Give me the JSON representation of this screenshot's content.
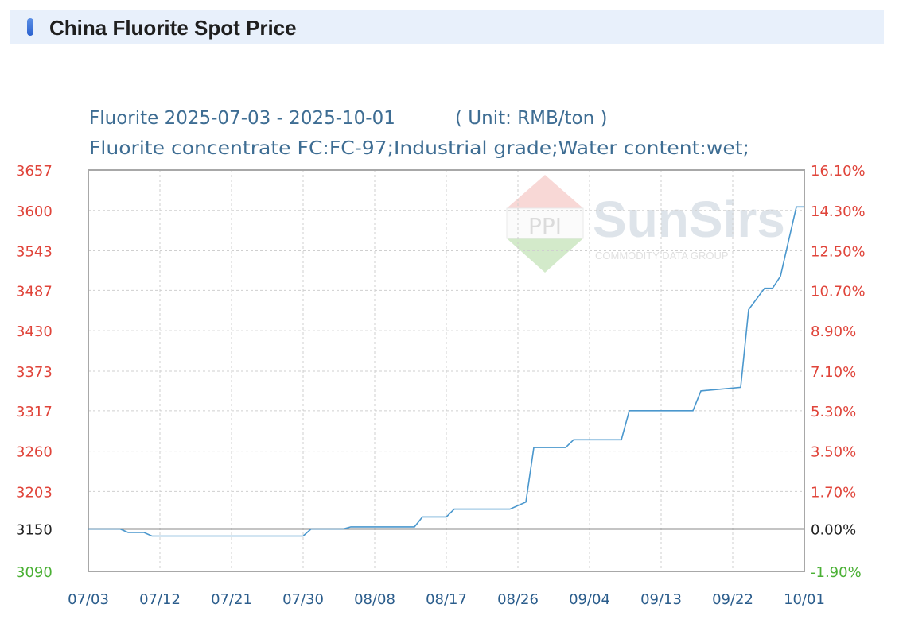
{
  "header": {
    "title": "China Fluorite Spot Price"
  },
  "chart_data": {
    "type": "line",
    "title": "Fluorite 2025-07-03 - 2025-10-01",
    "unit": "( Unit: RMB/ton )",
    "subtitle": "Fluorite concentrate FC:FC-97;Industrial grade;Water content:wet;",
    "watermark": {
      "brand": "SunSirs",
      "tagline": "COMMODITY DATA GROUP",
      "logo_text": "PPI"
    },
    "x_ticks": [
      "07/03",
      "07/12",
      "07/21",
      "07/30",
      "08/08",
      "08/17",
      "08/26",
      "09/04",
      "09/13",
      "09/22",
      "10/01"
    ],
    "y_ticks_left": [
      "3657",
      "3600",
      "3543",
      "3487",
      "3430",
      "3373",
      "3317",
      "3260",
      "3203",
      "3150",
      "3090"
    ],
    "y_ticks_right": [
      "16.10%",
      "14.30%",
      "12.50%",
      "10.70%",
      "8.90%",
      "7.10%",
      "5.30%",
      "3.50%",
      "1.70%",
      "0.00%",
      "-1.90%"
    ],
    "ylim": [
      3090,
      3657
    ],
    "xlim": [
      0,
      90
    ],
    "baseline": 3150,
    "grid": true,
    "series": [
      {
        "points": [
          [
            0,
            3150
          ],
          [
            4,
            3150
          ],
          [
            5,
            3145
          ],
          [
            7,
            3145
          ],
          [
            8,
            3140
          ],
          [
            27,
            3140
          ],
          [
            28,
            3150
          ],
          [
            32,
            3150
          ],
          [
            33,
            3153
          ],
          [
            41,
            3153
          ],
          [
            42,
            3167
          ],
          [
            45,
            3167
          ],
          [
            46,
            3178
          ],
          [
            53,
            3178
          ],
          [
            55,
            3188
          ],
          [
            56,
            3265
          ],
          [
            60,
            3265
          ],
          [
            61,
            3276
          ],
          [
            67,
            3276
          ],
          [
            68,
            3317
          ],
          [
            76,
            3317
          ],
          [
            77,
            3345
          ],
          [
            82,
            3350
          ],
          [
            83,
            3460
          ],
          [
            85,
            3490
          ],
          [
            86,
            3490
          ],
          [
            87,
            3507
          ],
          [
            89,
            3605
          ],
          [
            90,
            3605
          ]
        ]
      }
    ],
    "colors": {
      "line": "#4a97cd",
      "left_axis": "#e0443a",
      "right_axis": "#e0443a",
      "base_label": "#222222",
      "negative_label": "#4ab034",
      "x_labels": "#2b5d8c",
      "grid": "#cfcfcf",
      "frame": "#a8a8a8"
    }
  }
}
